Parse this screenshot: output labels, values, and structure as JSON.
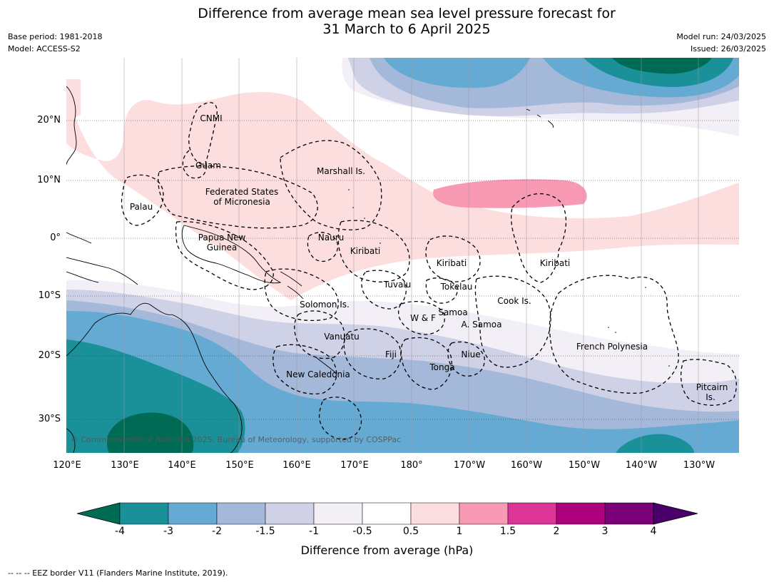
{
  "title": {
    "line1": "Difference from average mean sea level pressure forecast for",
    "line2": "31 March to 6 April 2025"
  },
  "meta": {
    "base_period": "Base period: 1981-2018",
    "model": "Model: ACCESS-S2",
    "model_run": "Model run: 24/03/2025",
    "issued": "Issued: 26/03/2025"
  },
  "map": {
    "lat_labels": [
      "20°N",
      "10°N",
      "0°",
      "10°S",
      "20°S",
      "30°S"
    ],
    "lon_labels": [
      "120°E",
      "130°E",
      "140°E",
      "150°E",
      "160°E",
      "170°E",
      "180°",
      "170°W",
      "160°W",
      "150°W",
      "140°W",
      "130°W"
    ],
    "places": {
      "cnmi": "CNMI",
      "guam": "Guam",
      "marshall": "Marshall Is.",
      "fsm1": "Federated States",
      "fsm2": "of Micronesia",
      "palau": "Palau",
      "png1": "Papua New",
      "png2": "Guinea",
      "nauru": "Nauru",
      "kiribati_w": "Kiribati",
      "kiribati_c": "Kiribati",
      "kiribati_e": "Kiribati",
      "tuvalu": "Tuvalu",
      "tokelau": "Tokelau",
      "solomon": "Solomon Is.",
      "samoa": "Samoa",
      "wf": "W & F",
      "asamoa": "A. Samoa",
      "cook": "Cook Is.",
      "vanuatu": "Vanuatu",
      "fiji": "Fiji",
      "niue": "Niue",
      "tonga": "Tonga",
      "newcal": "New Caledonia",
      "frpoly": "French Polynesia",
      "pitcairn1": "Pitcairn",
      "pitcairn2": "Is."
    },
    "copyright": "© Commonwealth of Australia 2025, Bureau of Meteorology, supported by COSPPac"
  },
  "colorbar": {
    "ticks": [
      "-4",
      "-3",
      "-2",
      "-1.5",
      "-1",
      "-0.5",
      "0.5",
      "1",
      "1.5",
      "2",
      "3",
      "4"
    ],
    "colors": {
      "lt_-4": "#006b55",
      "-4_-3": "#1a9098",
      "-3_-2": "#65aad3",
      "-2_-1.5": "#a4b8da",
      "-1.5_-1": "#cfd1e6",
      "-1_-0.5": "#f3eff6",
      "-0.5_0.5": "#ffffff",
      "0.5_1": "#fddede",
      "1_1.5": "#f99ab5",
      "1.5_2": "#dd3498",
      "2_3": "#ae017e",
      "3_4": "#7a0177",
      "gt_4": "#49006a"
    },
    "title": "Difference from average (hPa)"
  },
  "footnote": "-- -- -- EEZ border V11 (Flanders Marine Institute, 2019)."
}
